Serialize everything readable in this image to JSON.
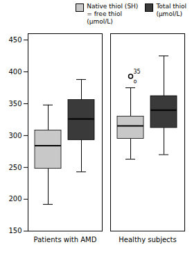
{
  "chart_data": {
    "type": "box",
    "categories": [
      "Patients with AMD",
      "Healthy subjects"
    ],
    "series": [
      {
        "name": "Native thiol (SH)\n= free thiol\n(μmol/L)",
        "color": "#c8c8c8",
        "values": [
          {
            "whisker_low": 192,
            "q1": 248,
            "median": 284,
            "q3": 308,
            "whisker_high": 348
          },
          {
            "whisker_low": 263,
            "q1": 295,
            "median": 315,
            "q3": 330,
            "whisker_high": 375
          }
        ],
        "outliers": [
          [],
          [
            {
              "value": 393,
              "labels": [
                "35",
                "o"
              ]
            }
          ]
        ]
      },
      {
        "name": "Total thiol\n(μmol/L)",
        "color": "#3a3a3a",
        "values": [
          {
            "whisker_low": 243,
            "q1": 293,
            "median": 326,
            "q3": 356,
            "whisker_high": 388
          },
          {
            "whisker_low": 270,
            "q1": 312,
            "median": 340,
            "q3": 362,
            "whisker_high": 425
          }
        ],
        "outliers": [
          [],
          []
        ]
      }
    ],
    "ylim": [
      150,
      460
    ],
    "yticks": [
      150,
      200,
      250,
      300,
      350,
      400,
      450
    ],
    "grid": false,
    "legend": "upper right"
  }
}
